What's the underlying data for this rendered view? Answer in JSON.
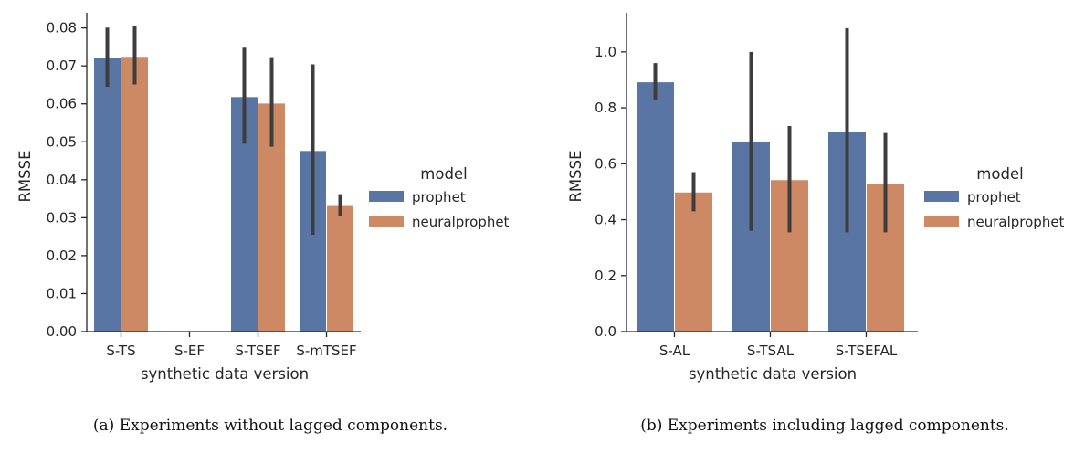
{
  "chart_data": [
    {
      "type": "bar",
      "caption": "(a) Experiments without lagged components.",
      "xlabel": "synthetic data version",
      "ylabel": "RMSSE",
      "categories": [
        "S-TS",
        "S-EF",
        "S-TSEF",
        "S-mTSEF"
      ],
      "yticks": [
        "0.00",
        "0.01",
        "0.02",
        "0.03",
        "0.04",
        "0.05",
        "0.06",
        "0.07",
        "0.08"
      ],
      "ylim": [
        0,
        0.084
      ],
      "legend_title": "model",
      "legend_position": "right",
      "series": [
        {
          "name": "prophet",
          "color": "#5875a4",
          "values": [
            0.0723,
            0.0,
            0.0619,
            0.0477
          ],
          "err_low": [
            0.0645,
            null,
            0.0495,
            0.0255
          ],
          "err_high": [
            0.0801,
            null,
            0.0748,
            0.0704
          ]
        },
        {
          "name": "neuralprophet",
          "color": "#cc8963",
          "values": [
            0.0725,
            0.0,
            0.0602,
            0.0332
          ],
          "err_low": [
            0.0651,
            null,
            0.0487,
            0.0305
          ],
          "err_high": [
            0.0804,
            null,
            0.0723,
            0.0362
          ]
        }
      ]
    },
    {
      "type": "bar",
      "caption": "(b) Experiments including lagged components.",
      "xlabel": "synthetic data version",
      "ylabel": "RMSSE",
      "categories": [
        "S-AL",
        "S-TSAL",
        "S-TSEFAL"
      ],
      "yticks": [
        "0.0",
        "0.2",
        "0.4",
        "0.6",
        "0.8",
        "1.0"
      ],
      "ylim": [
        0,
        1.14
      ],
      "legend_title": "model",
      "legend_position": "right",
      "series": [
        {
          "name": "prophet",
          "color": "#5875a4",
          "values": [
            0.893,
            0.678,
            0.714
          ],
          "err_low": [
            0.83,
            0.36,
            0.355
          ],
          "err_high": [
            0.96,
            1.0,
            1.085
          ]
        },
        {
          "name": "neuralprophet",
          "color": "#cc8963",
          "values": [
            0.499,
            0.543,
            0.53
          ],
          "err_low": [
            0.43,
            0.355,
            0.355
          ],
          "err_high": [
            0.57,
            0.735,
            0.71
          ]
        }
      ]
    }
  ]
}
